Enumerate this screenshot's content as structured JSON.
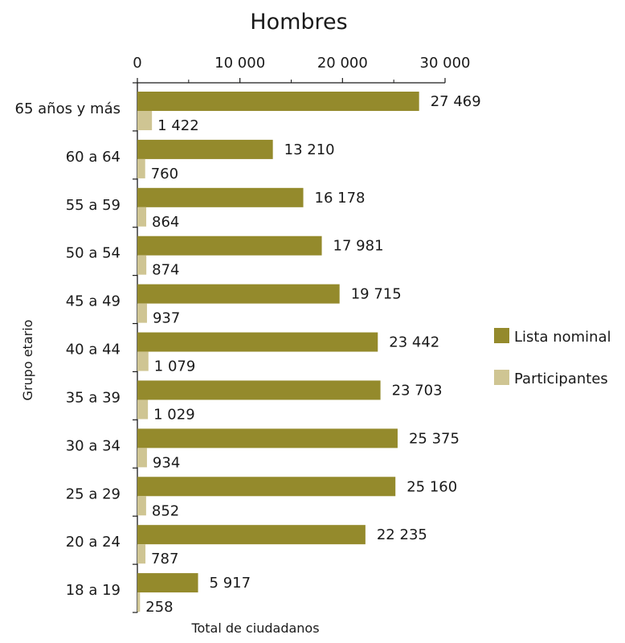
{
  "chart_data": {
    "type": "bar",
    "orientation": "horizontal",
    "title": "Hombres",
    "xlabel": "Total de ciudadanos",
    "ylabel": "Grupo etario",
    "xlim": [
      0,
      30000
    ],
    "xticks": [
      0,
      10000,
      20000,
      30000
    ],
    "xtick_labels": [
      "0",
      "10 000",
      "20 000",
      "30 000"
    ],
    "x_axis_position": "top",
    "grid": false,
    "legend_position": "right",
    "categories": [
      "65 años y más",
      "60 a 64",
      "55 a 59",
      "50 a 54",
      "45 a 49",
      "40 a 44",
      "35 a 39",
      "30 a 34",
      "25 a 29",
      "20 a 24",
      "18 a 19"
    ],
    "series": [
      {
        "name": "Lista nominal",
        "color": "#948a2c",
        "values": [
          27469,
          13210,
          16178,
          17981,
          19715,
          23442,
          23703,
          25375,
          25160,
          22235,
          5917
        ],
        "labels": [
          "27 469",
          "13 210",
          "16 178",
          "17 981",
          "19 715",
          "23 442",
          "23 703",
          "25 375",
          "25 160",
          "22 235",
          "5 917"
        ]
      },
      {
        "name": "Participantes",
        "color": "#cfc593",
        "values": [
          1422,
          760,
          864,
          874,
          937,
          1079,
          1029,
          934,
          852,
          787,
          258
        ],
        "labels": [
          "1 422",
          "760",
          "864",
          "874",
          "937",
          "1 079",
          "1 029",
          "934",
          "852",
          "787",
          "258"
        ]
      }
    ]
  }
}
